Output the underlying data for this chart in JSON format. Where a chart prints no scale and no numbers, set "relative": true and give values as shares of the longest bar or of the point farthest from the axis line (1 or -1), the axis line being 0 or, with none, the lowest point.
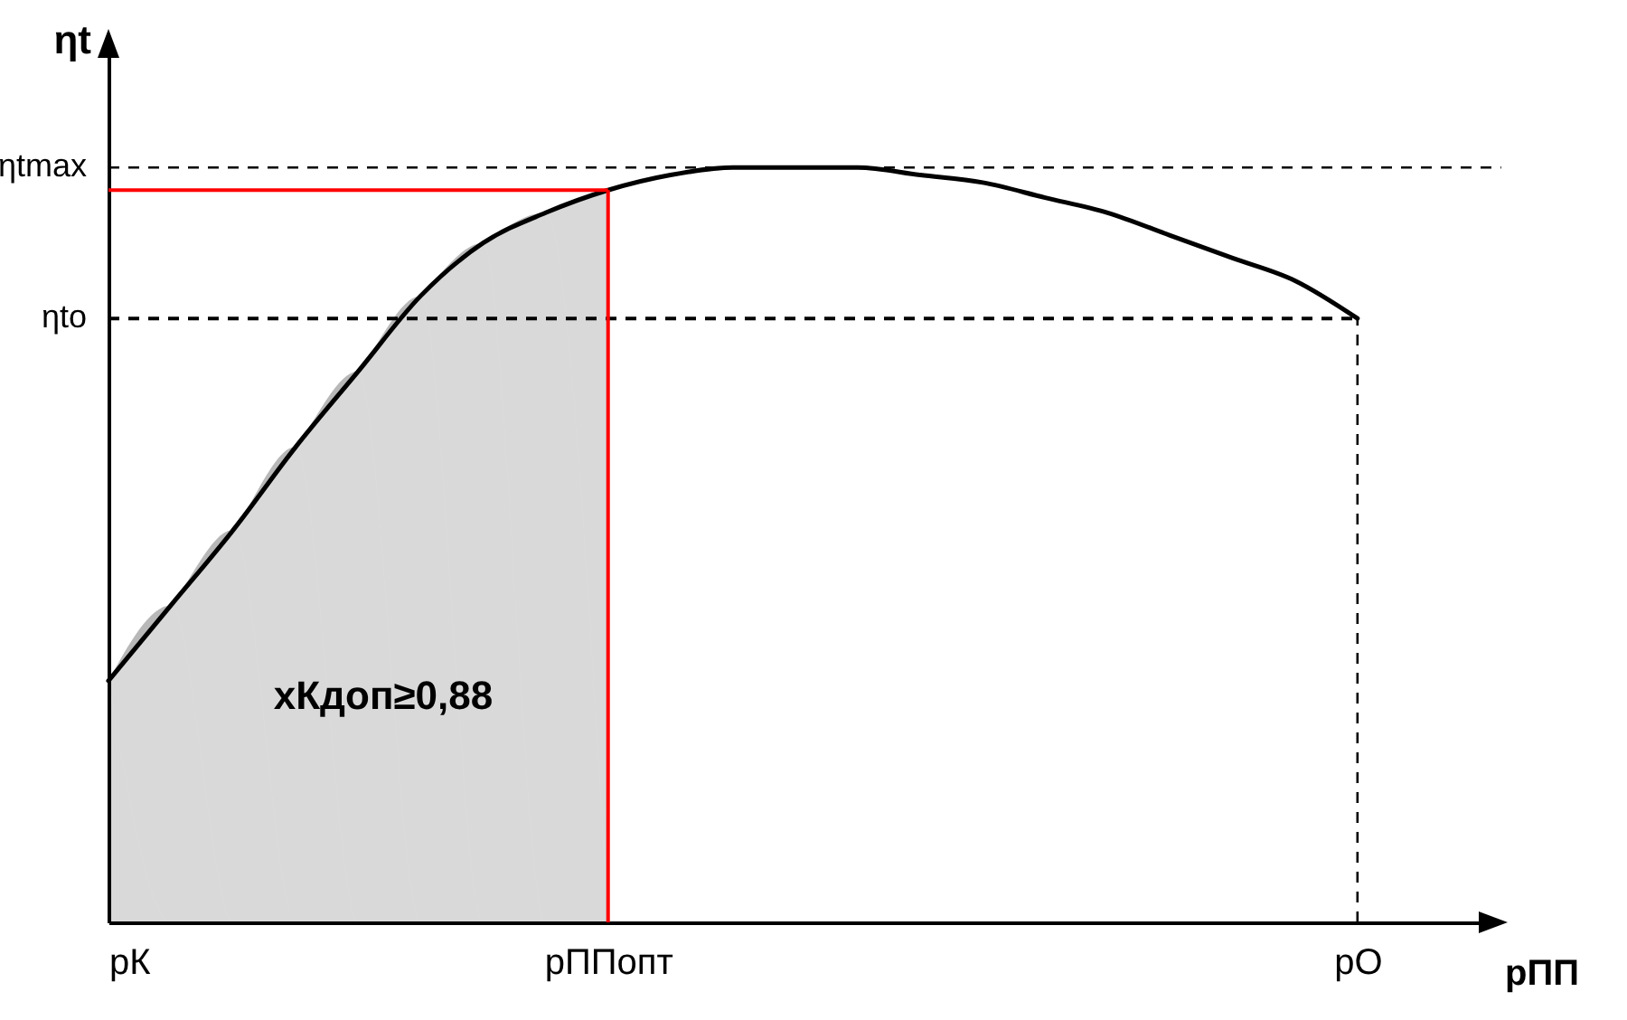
{
  "chart_data": {
    "type": "line",
    "relative": true,
    "xlabel": "pПП",
    "ylabel": "ηt",
    "categories": [
      "pК",
      null,
      null,
      null,
      null,
      null,
      null,
      null,
      "pППопт",
      null,
      null,
      null,
      null,
      null,
      null,
      null,
      null,
      null,
      null,
      null,
      "pО",
      null,
      null
    ],
    "series": [
      {
        "type": "area",
        "color": "#000000",
        "values": [
          0.32,
          0.42,
          0.52,
          0.63,
          0.73,
          0.83,
          0.9,
          0.94,
          0.97,
          null,
          null,
          null,
          null,
          null,
          null,
          null,
          null,
          null,
          null,
          null,
          null,
          null,
          null
        ]
      },
      {
        "color": "#000000",
        "line_style": "solid",
        "values": [
          0.32,
          0.42,
          0.52,
          0.63,
          0.73,
          0.83,
          0.9,
          0.94,
          0.97,
          0.99,
          1,
          1,
          1,
          0.99,
          0.98,
          0.96,
          0.94,
          0.91,
          0.88,
          0.85,
          0.8,
          null,
          null
        ]
      }
    ],
    "ref_lines": [
      {
        "axis": "y",
        "value": 1,
        "label": "ηtmax",
        "color": "#000000",
        "line_style": "dashed"
      },
      {
        "axis": "y",
        "value": 0.8,
        "label": "ηto",
        "color": "#000000",
        "line_style": "dashed"
      },
      {
        "axis": "y",
        "value": 0.97,
        "color": "#ff0000",
        "line_style": "solid"
      },
      {
        "axis": "x",
        "value": "pППопт",
        "color": "#ff0000",
        "line_style": "solid"
      },
      {
        "axis": "x",
        "value": "pО",
        "color": "#000000",
        "line_style": "dashed"
      }
    ],
    "annotations": [
      "xКдоп≥0,88"
    ],
    "grid": false
  }
}
